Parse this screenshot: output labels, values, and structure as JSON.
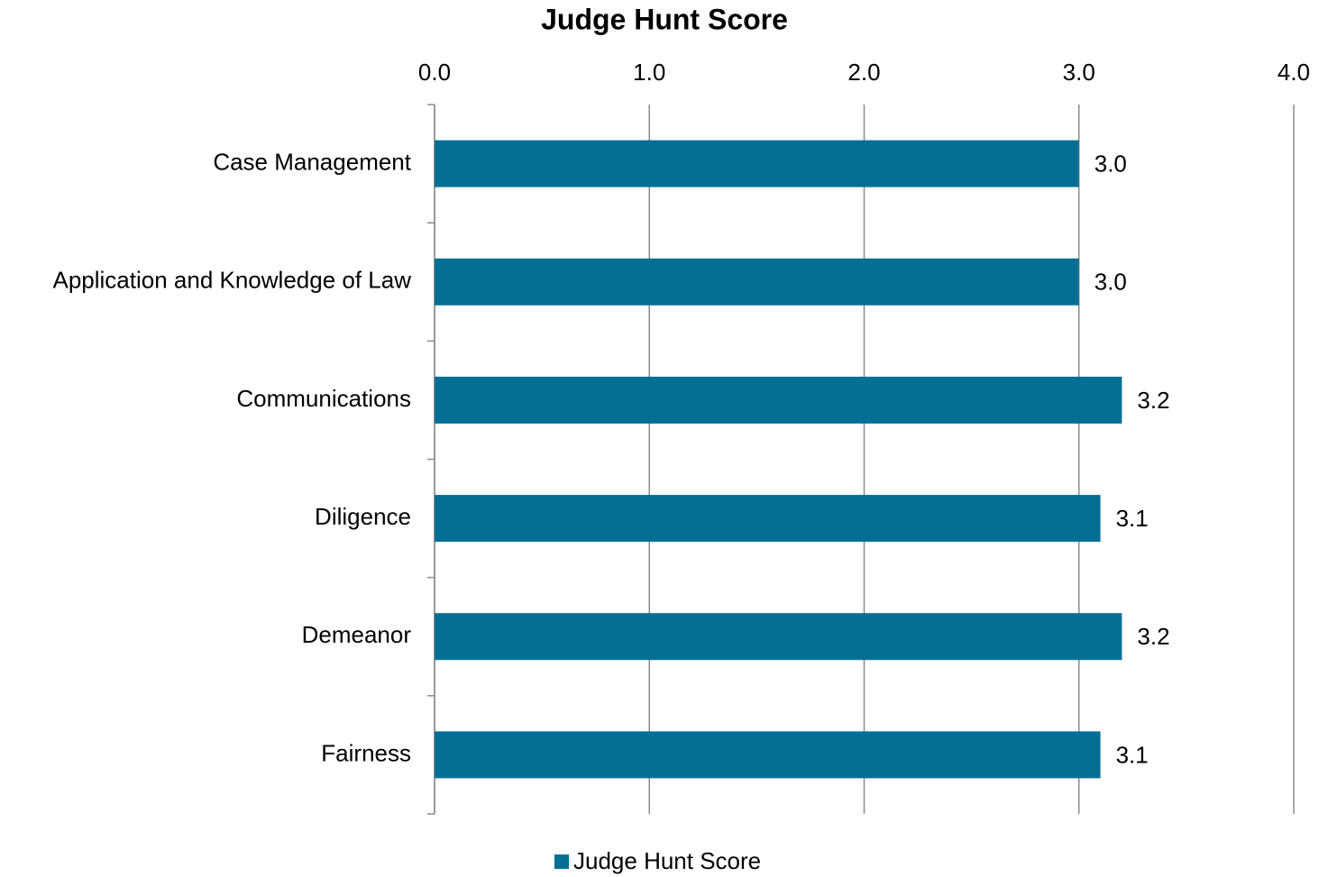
{
  "chart_data": {
    "type": "bar",
    "orientation": "horizontal",
    "title": "Judge Hunt Score",
    "categories": [
      "Case Management",
      "Application and Knowledge of Law",
      "Communications",
      "Diligence",
      "Demeanor",
      "Fairness"
    ],
    "series": [
      {
        "name": "Judge Hunt Score",
        "color": "#046f94",
        "values": [
          3,
          3,
          3.2,
          3.1,
          3.2,
          3.1
        ],
        "value_labels": [
          "3.0",
          "3.0",
          "3.2",
          "3.1",
          "3.2",
          "3.1"
        ]
      }
    ],
    "xlim": [
      0,
      4
    ],
    "xticks": [
      {
        "value": 0,
        "label": "0.0"
      },
      {
        "value": 1,
        "label": "1.0"
      },
      {
        "value": 2,
        "label": "2.0"
      },
      {
        "value": 3,
        "label": "3.0"
      },
      {
        "value": 4,
        "label": "4.0"
      }
    ],
    "grid": true,
    "legend": "bottom"
  }
}
